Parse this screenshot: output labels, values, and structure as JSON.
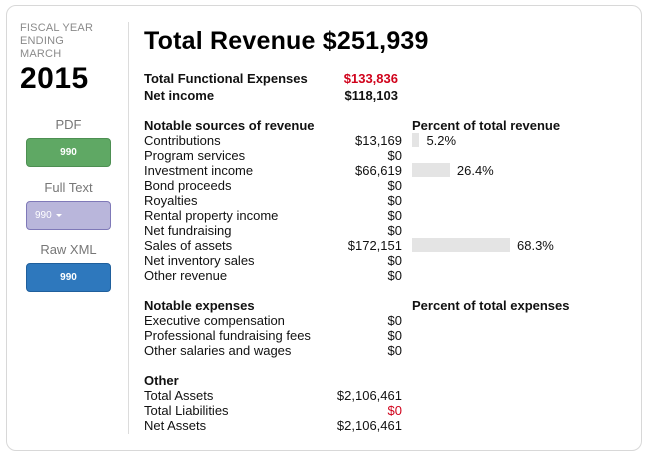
{
  "sidebar": {
    "fiscal_year_label": [
      "FISCAL YEAR",
      "ENDING",
      "MARCH"
    ],
    "year": "2015",
    "downloads": [
      {
        "label": "PDF",
        "button": "990",
        "style": "green"
      },
      {
        "label": "Full Text",
        "button": "990",
        "style": "purple",
        "dropdown": true
      },
      {
        "label": "Raw XML",
        "button": "990",
        "style": "blue"
      }
    ]
  },
  "header": {
    "title": "Total Revenue $251,939",
    "summary": [
      {
        "label": "Total Functional Expenses",
        "value": "$133,836",
        "color": "#d0021b"
      },
      {
        "label": "Net income",
        "value": "$118,103",
        "color": "#111111"
      }
    ]
  },
  "revenue": {
    "heading": "Notable sources of revenue",
    "percent_heading": "Percent of total revenue",
    "items": [
      {
        "label": "Contributions",
        "value": "$13,169",
        "percent": 5.2,
        "percent_label": "5.2%"
      },
      {
        "label": "Program services",
        "value": "$0"
      },
      {
        "label": "Investment income",
        "value": "$66,619",
        "percent": 26.4,
        "percent_label": "26.4%"
      },
      {
        "label": "Bond proceeds",
        "value": "$0"
      },
      {
        "label": "Royalties",
        "value": "$0"
      },
      {
        "label": "Rental property income",
        "value": "$0"
      },
      {
        "label": "Net fundraising",
        "value": "$0"
      },
      {
        "label": "Sales of assets",
        "value": "$172,151",
        "percent": 68.3,
        "percent_label": "68.3%"
      },
      {
        "label": "Net inventory sales",
        "value": "$0"
      },
      {
        "label": "Other revenue",
        "value": "$0"
      }
    ]
  },
  "expenses": {
    "heading": "Notable expenses",
    "percent_heading": "Percent of total expenses",
    "items": [
      {
        "label": "Executive compensation",
        "value": "$0"
      },
      {
        "label": "Professional fundraising fees",
        "value": "$0"
      },
      {
        "label": "Other salaries and wages",
        "value": "$0"
      }
    ]
  },
  "other": {
    "heading": "Other",
    "items": [
      {
        "label": "Total Assets",
        "value": "$2,106,461",
        "color": "#111111"
      },
      {
        "label": "Total Liabilities",
        "value": "$0",
        "color": "#d0021b"
      },
      {
        "label": "Net Assets",
        "value": "$2,106,461",
        "color": "#111111"
      }
    ]
  }
}
